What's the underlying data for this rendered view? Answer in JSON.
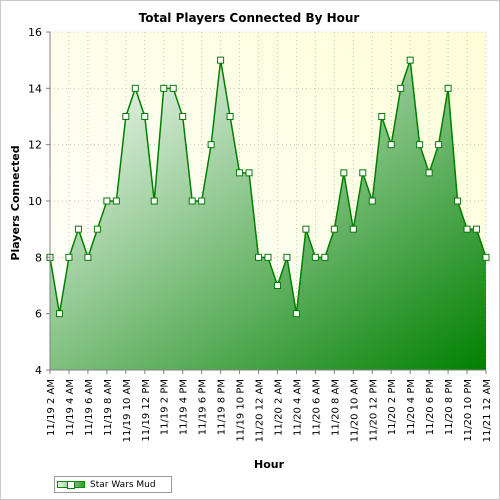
{
  "chart_data": {
    "type": "area",
    "title": "Total Players Connected By Hour",
    "xlabel": "Hour",
    "ylabel": "Players Connected",
    "ylim": [
      4,
      16
    ],
    "yticks": [
      4,
      6,
      8,
      10,
      12,
      14,
      16
    ],
    "grid": true,
    "legend_position": "bottom-left",
    "x": [
      "11/19 2 AM",
      "11/19 3 AM",
      "11/19 4 AM",
      "11/19 5 AM",
      "11/19 6 AM",
      "11/19 7 AM",
      "11/19 8 AM",
      "11/19 9 AM",
      "11/19 10 AM",
      "11/19 11 AM",
      "11/19 12 PM",
      "11/19 1 PM",
      "11/19 2 PM",
      "11/19 3 PM",
      "11/19 4 PM",
      "11/19 5 PM",
      "11/19 6 PM",
      "11/19 7 PM",
      "11/19 8 PM",
      "11/19 9 PM",
      "11/19 10 PM",
      "11/19 11 PM",
      "11/20 12 AM",
      "11/20 1 AM",
      "11/20 2 AM",
      "11/20 3 AM",
      "11/20 4 AM",
      "11/20 5 AM",
      "11/20 6 AM",
      "11/20 7 AM",
      "11/20 8 AM",
      "11/20 9 AM",
      "11/20 10 AM",
      "11/20 11 AM",
      "11/20 12 PM",
      "11/20 1 PM",
      "11/20 2 PM",
      "11/20 3 PM",
      "11/20 4 PM",
      "11/20 5 PM",
      "11/20 6 PM",
      "11/20 7 PM",
      "11/20 8 PM",
      "11/20 9 PM",
      "11/20 10 PM",
      "11/20 11 PM",
      "11/21 12 AM"
    ],
    "tick_labels": [
      "11/19 2 AM",
      "11/19 4 AM",
      "11/19 6 AM",
      "11/19 8 AM",
      "11/19 10 AM",
      "11/19 12 PM",
      "11/19 2 PM",
      "11/19 4 PM",
      "11/19 6 PM",
      "11/19 8 PM",
      "11/19 10 PM",
      "11/20 12 AM",
      "11/20 2 AM",
      "11/20 4 AM",
      "11/20 6 AM",
      "11/20 8 AM",
      "11/20 10 AM",
      "11/20 12 PM",
      "11/20 2 PM",
      "11/20 4 PM",
      "11/20 6 PM",
      "11/20 8 PM",
      "11/20 10 PM",
      "11/21 12 AM"
    ],
    "series": [
      {
        "name": "Star Wars Mud",
        "color": "#008000",
        "values": [
          8,
          6,
          8,
          9,
          8,
          9,
          10,
          10,
          13,
          14,
          13,
          10,
          14,
          14,
          13,
          10,
          10,
          12,
          15,
          13,
          11,
          11,
          8,
          8,
          7,
          8,
          6,
          9,
          8,
          8,
          9,
          11,
          9,
          11,
          10,
          13,
          12,
          14,
          15,
          12,
          11,
          12,
          14,
          10,
          9,
          9,
          8
        ]
      }
    ]
  },
  "legend": {
    "label": "Star Wars Mud"
  },
  "colors": {
    "plot_background_top": "#fefee0",
    "plot_background_bottom": "#ffffff",
    "line": "#008000",
    "fill_light": "#ffffff",
    "fill_dark": "#008000"
  }
}
